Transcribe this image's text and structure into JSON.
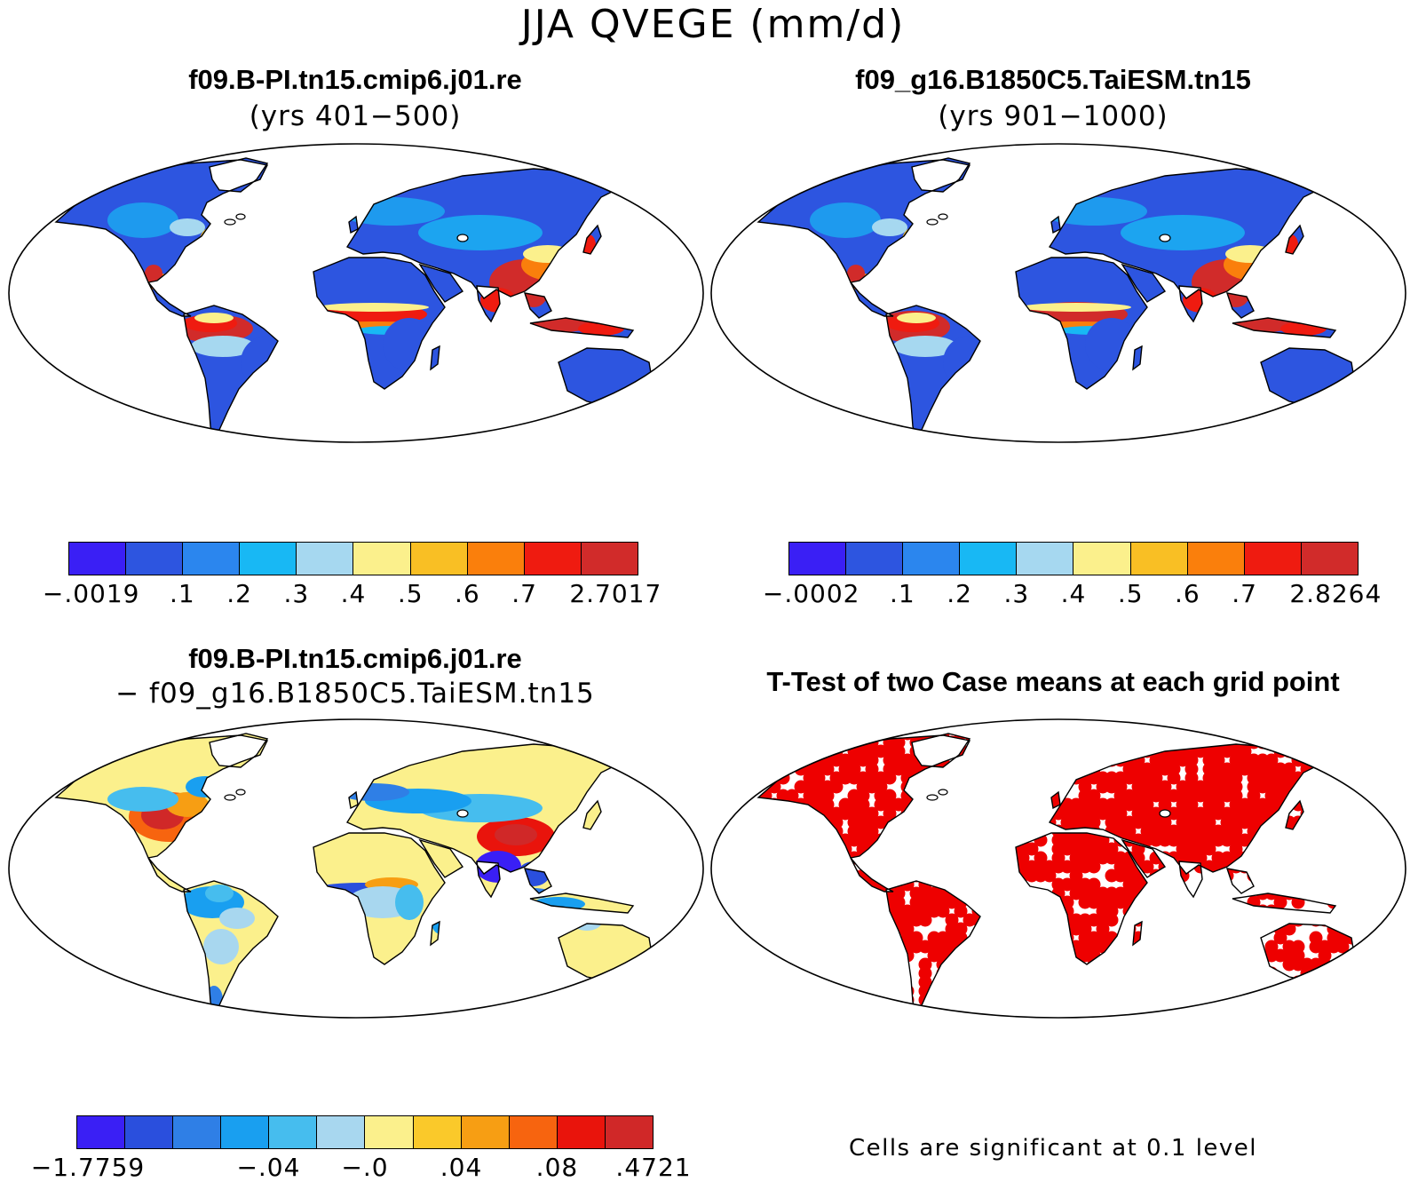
{
  "title": "JJA QVEGE (mm/d)",
  "panels": [
    {
      "id": "case1",
      "title": "f09.B-PI.tn15.cmip6.j01.re",
      "subtitle": "(yrs 401−500)",
      "colorbar": {
        "colors": [
          "#3a1ff5",
          "#2d55e0",
          "#2b86ee",
          "#18b8f4",
          "#a6d8f0",
          "#fbf08c",
          "#f9bf24",
          "#fa7f0c",
          "#ef1b10",
          "#d12b2a"
        ],
        "labels": [
          "−.0019",
          ".1",
          ".2",
          ".3",
          ".4",
          ".5",
          ".6",
          ".7",
          "2.7017"
        ]
      }
    },
    {
      "id": "case2",
      "title": "f09_g16.B1850C5.TaiESM.tn15",
      "subtitle": "(yrs 901−1000)",
      "colorbar": {
        "colors": [
          "#3a1ff5",
          "#2d55e0",
          "#2b86ee",
          "#18b8f4",
          "#a6d8f0",
          "#fbf08c",
          "#f9bf24",
          "#fa7f0c",
          "#ef1b10",
          "#d12b2a"
        ],
        "labels": [
          "−.0002",
          ".1",
          ".2",
          ".3",
          ".4",
          ".5",
          ".6",
          ".7",
          "2.8264"
        ]
      }
    },
    {
      "id": "diff",
      "title": "f09.B-PI.tn15.cmip6.j01.re",
      "subtitle": "− f09_g16.B1850C5.TaiESM.tn15",
      "colorbar": {
        "colors": [
          "#3a1ff5",
          "#2a4fdd",
          "#2f7fe6",
          "#199ff0",
          "#46bdee",
          "#a8d7ef",
          "#fbf08c",
          "#fac92a",
          "#f79e13",
          "#f7640f",
          "#e9140c",
          "#d02828"
        ],
        "labels": [
          "−1.7759",
          "−.04",
          "−.0",
          ".04",
          ".08",
          ".4721"
        ]
      }
    },
    {
      "id": "ttest",
      "title": "T-Test of two Case means at each grid point",
      "note": "Cells are significant at 0.1 level",
      "highlight_color": "#ee0000"
    }
  ]
}
